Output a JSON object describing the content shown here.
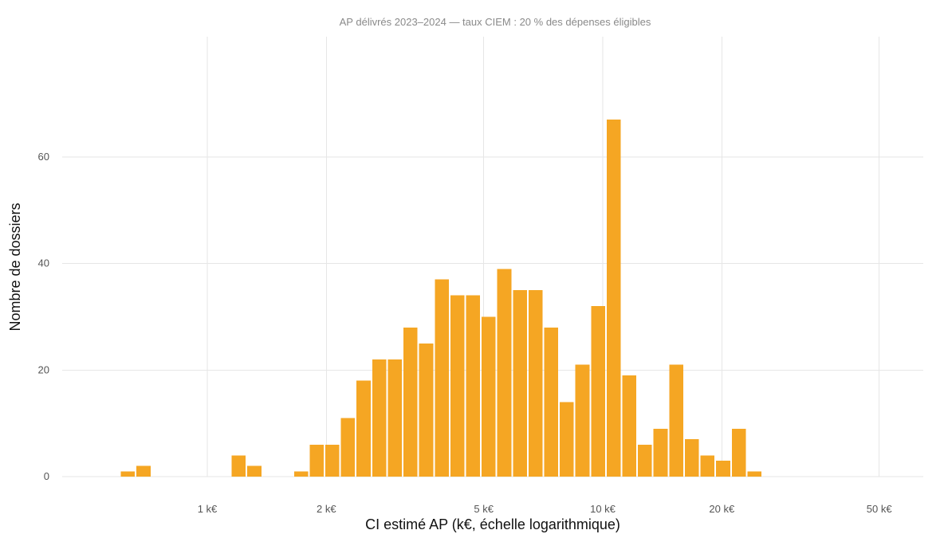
{
  "chart_data": {
    "type": "bar",
    "title": "AP délivrés 2023–2024 — taux CIEM : 20 % des dépenses éligibles",
    "xlabel": "CI estimé AP (k€, échelle logarithmique)",
    "ylabel": "Nombre de dossiers",
    "x_scale": "log",
    "xlim": [
      0.5,
      60
    ],
    "ylim": [
      0,
      70
    ],
    "grid": true,
    "legend": "none",
    "bar_color": "#f5a623",
    "x_ticks": [
      {
        "value": 1,
        "label": "1 k€"
      },
      {
        "value": 2,
        "label": "2 k€"
      },
      {
        "value": 5,
        "label": "5 k€"
      },
      {
        "value": 10,
        "label": "10 k€"
      },
      {
        "value": 20,
        "label": "20 k€"
      },
      {
        "value": 50,
        "label": "50 k€"
      }
    ],
    "y_ticks": [
      {
        "value": 0,
        "label": "0"
      },
      {
        "value": 20,
        "label": "20"
      },
      {
        "value": 40,
        "label": "40"
      },
      {
        "value": 60,
        "label": "60"
      }
    ],
    "bins": [
      {
        "x0": 0.602,
        "x1": 0.659,
        "count": 1
      },
      {
        "x0": 0.659,
        "x1": 0.722,
        "count": 2
      },
      {
        "x0": 1.147,
        "x1": 1.256,
        "count": 4
      },
      {
        "x0": 1.256,
        "x1": 1.376,
        "count": 2
      },
      {
        "x0": 1.65,
        "x1": 1.807,
        "count": 1
      },
      {
        "x0": 1.807,
        "x1": 1.979,
        "count": 6
      },
      {
        "x0": 1.979,
        "x1": 2.167,
        "count": 6
      },
      {
        "x0": 2.167,
        "x1": 2.374,
        "count": 11
      },
      {
        "x0": 2.374,
        "x1": 2.6,
        "count": 18
      },
      {
        "x0": 2.6,
        "x1": 2.848,
        "count": 22
      },
      {
        "x0": 2.848,
        "x1": 3.119,
        "count": 22
      },
      {
        "x0": 3.119,
        "x1": 3.416,
        "count": 28
      },
      {
        "x0": 3.416,
        "x1": 3.742,
        "count": 25
      },
      {
        "x0": 3.742,
        "x1": 4.098,
        "count": 37
      },
      {
        "x0": 4.098,
        "x1": 4.489,
        "count": 34
      },
      {
        "x0": 4.489,
        "x1": 4.917,
        "count": 34
      },
      {
        "x0": 4.917,
        "x1": 5.385,
        "count": 30
      },
      {
        "x0": 5.385,
        "x1": 5.898,
        "count": 39
      },
      {
        "x0": 5.898,
        "x1": 6.46,
        "count": 35
      },
      {
        "x0": 6.46,
        "x1": 7.076,
        "count": 35
      },
      {
        "x0": 7.076,
        "x1": 7.75,
        "count": 28
      },
      {
        "x0": 7.75,
        "x1": 8.488,
        "count": 14
      },
      {
        "x0": 8.488,
        "x1": 9.297,
        "count": 21
      },
      {
        "x0": 9.297,
        "x1": 10.183,
        "count": 32
      },
      {
        "x0": 10.183,
        "x1": 11.153,
        "count": 67
      },
      {
        "x0": 11.153,
        "x1": 12.216,
        "count": 19
      },
      {
        "x0": 12.216,
        "x1": 13.38,
        "count": 6
      },
      {
        "x0": 13.38,
        "x1": 14.655,
        "count": 9
      },
      {
        "x0": 14.655,
        "x1": 16.051,
        "count": 21
      },
      {
        "x0": 16.051,
        "x1": 17.581,
        "count": 7
      },
      {
        "x0": 17.581,
        "x1": 19.256,
        "count": 4
      },
      {
        "x0": 19.256,
        "x1": 21.091,
        "count": 3
      },
      {
        "x0": 21.091,
        "x1": 23.1,
        "count": 9
      },
      {
        "x0": 23.1,
        "x1": 25.301,
        "count": 1
      }
    ]
  }
}
